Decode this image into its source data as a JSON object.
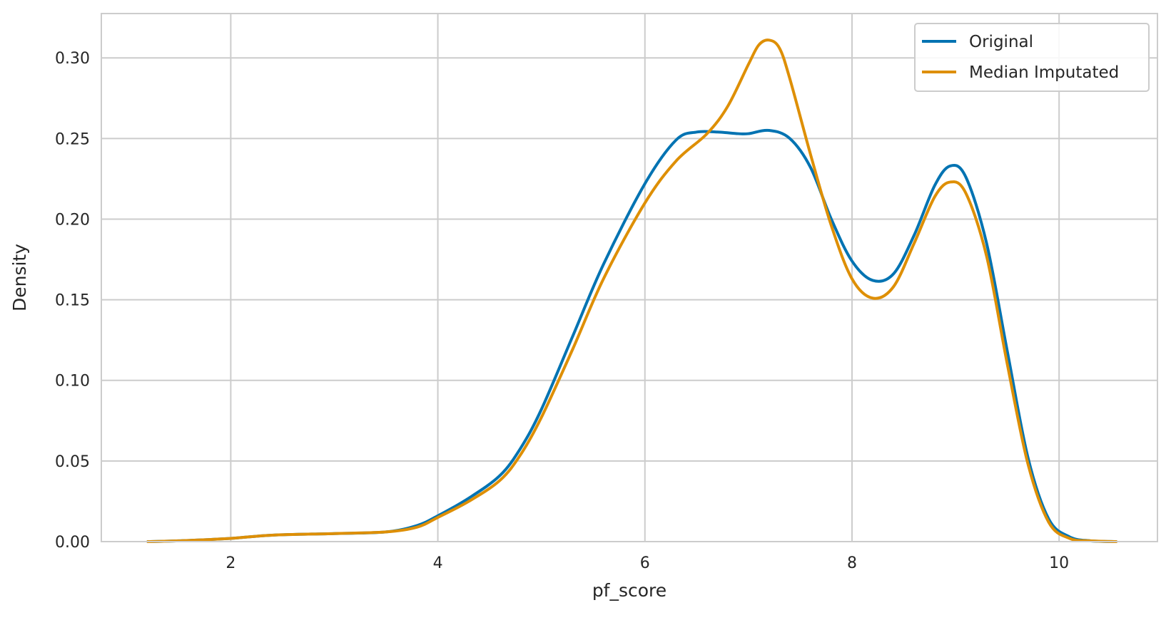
{
  "chart_data": {
    "type": "line",
    "title": "",
    "xlabel": "pf_score",
    "ylabel": "Density",
    "xlim": [
      0.75,
      10.95
    ],
    "ylim": [
      0.0,
      0.3275
    ],
    "xticks": [
      2,
      4,
      6,
      8,
      10
    ],
    "xtick_labels": [
      "2",
      "4",
      "6",
      "8",
      "10"
    ],
    "yticks": [
      0.0,
      0.05,
      0.1,
      0.15,
      0.2,
      0.25,
      0.3
    ],
    "ytick_labels": [
      "0.00",
      "0.05",
      "0.10",
      "0.15",
      "0.20",
      "0.25",
      "0.30"
    ],
    "grid": true,
    "legend_position": "top-right",
    "series": [
      {
        "name": "Original",
        "color": "#0173b2",
        "x": [
          1.2,
          1.5,
          2.0,
          2.4,
          3.0,
          3.5,
          3.8,
          4.0,
          4.3,
          4.6,
          4.8,
          5.0,
          5.3,
          5.6,
          6.0,
          6.3,
          6.5,
          6.7,
          6.9,
          7.0,
          7.2,
          7.4,
          7.6,
          7.8,
          8.0,
          8.2,
          8.4,
          8.6,
          8.8,
          8.95,
          9.1,
          9.3,
          9.5,
          9.7,
          9.9,
          10.1,
          10.3,
          10.55
        ],
        "y": [
          0.0,
          0.0005,
          0.002,
          0.004,
          0.005,
          0.006,
          0.01,
          0.016,
          0.027,
          0.041,
          0.058,
          0.082,
          0.127,
          0.172,
          0.222,
          0.249,
          0.254,
          0.254,
          0.253,
          0.253,
          0.255,
          0.25,
          0.232,
          0.2,
          0.174,
          0.162,
          0.166,
          0.19,
          0.221,
          0.233,
          0.226,
          0.185,
          0.118,
          0.052,
          0.014,
          0.003,
          0.0005,
          0.0
        ]
      },
      {
        "name": "Median Imputated",
        "color": "#de8f05",
        "x": [
          1.2,
          1.5,
          2.0,
          2.4,
          3.0,
          3.5,
          3.8,
          4.0,
          4.3,
          4.6,
          4.8,
          5.0,
          5.3,
          5.6,
          6.0,
          6.3,
          6.6,
          6.8,
          7.0,
          7.1,
          7.2,
          7.3,
          7.4,
          7.6,
          7.8,
          8.0,
          8.2,
          8.4,
          8.6,
          8.8,
          8.95,
          9.1,
          9.3,
          9.5,
          9.7,
          9.9,
          10.1,
          10.3,
          10.55
        ],
        "y": [
          0.0,
          0.0005,
          0.002,
          0.004,
          0.005,
          0.006,
          0.009,
          0.015,
          0.025,
          0.038,
          0.054,
          0.077,
          0.119,
          0.163,
          0.21,
          0.236,
          0.253,
          0.27,
          0.296,
          0.308,
          0.311,
          0.306,
          0.287,
          0.24,
          0.196,
          0.163,
          0.151,
          0.158,
          0.185,
          0.214,
          0.223,
          0.216,
          0.177,
          0.11,
          0.048,
          0.012,
          0.002,
          0.0005,
          0.0
        ]
      }
    ]
  }
}
